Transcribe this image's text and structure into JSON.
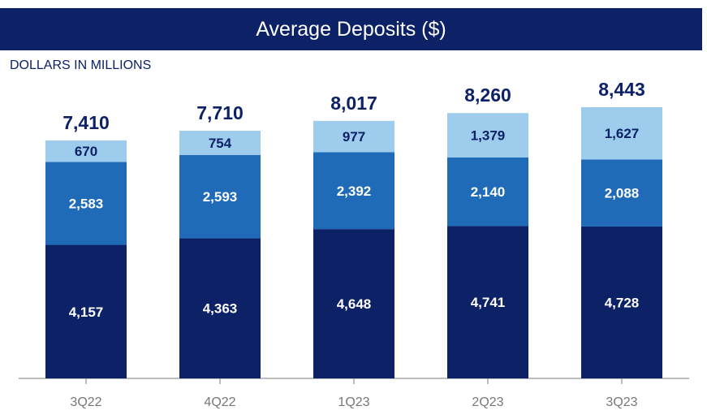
{
  "chart_data": {
    "type": "stacked-bar",
    "title": "Average Deposits ($)",
    "ylabel": "DOLLARS IN MILLIONS",
    "categories": [
      "3Q22",
      "4Q22",
      "1Q23",
      "2Q23",
      "3Q23"
    ],
    "series": [
      {
        "name": "bottom",
        "color": "#0c2166",
        "label_color": "#ffffff",
        "values": [
          4157,
          4363,
          4648,
          4741,
          4728
        ],
        "labels": [
          "4,157",
          "4,363",
          "4,648",
          "4,741",
          "4,728"
        ]
      },
      {
        "name": "middle",
        "color": "#1f6bb8",
        "label_color": "#ffffff",
        "values": [
          2583,
          2593,
          2392,
          2140,
          2088
        ],
        "labels": [
          "2,583",
          "2,593",
          "2,392",
          "2,140",
          "2,088"
        ]
      },
      {
        "name": "top",
        "color": "#9dccec",
        "label_color": "#0c2166",
        "values": [
          670,
          754,
          977,
          1379,
          1627
        ],
        "labels": [
          "670",
          "754",
          "977",
          "1,379",
          "1,627"
        ]
      }
    ],
    "totals": [
      "7,410",
      "7,710",
      "8,017",
      "8,260",
      "8,443"
    ],
    "ylim": [
      0,
      8443
    ]
  }
}
